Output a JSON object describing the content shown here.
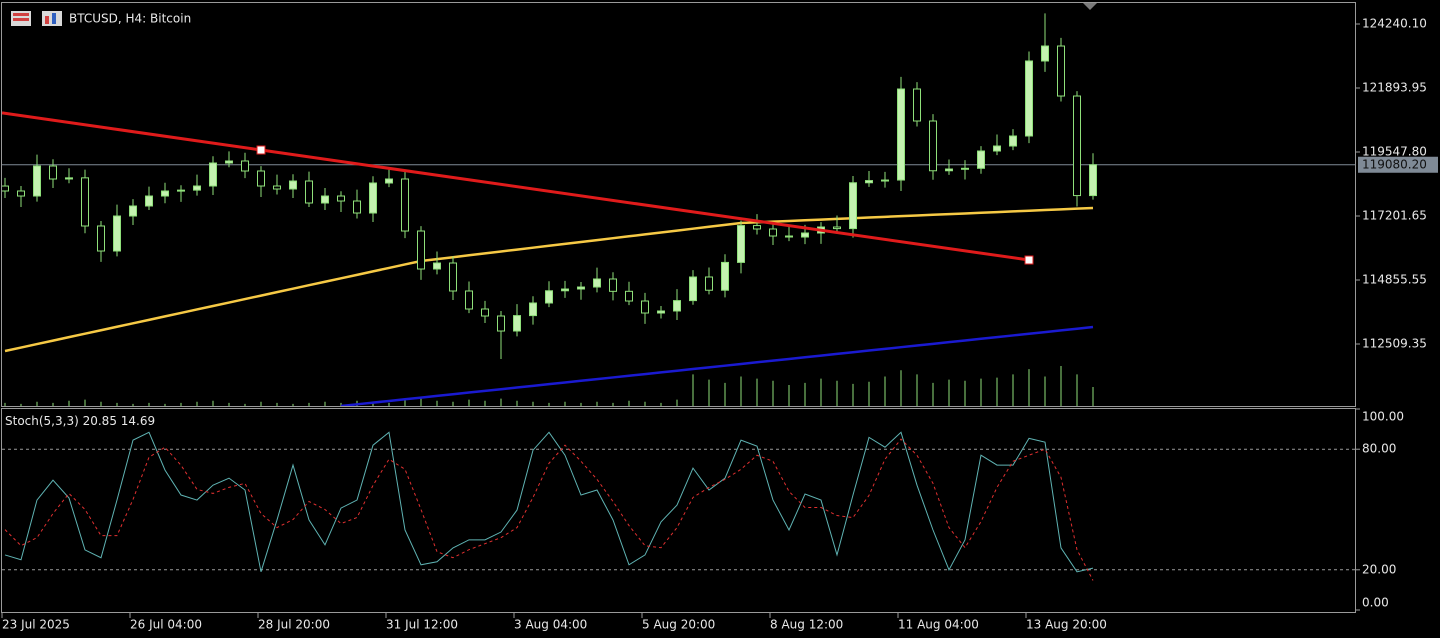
{
  "header": {
    "symbol": "BTCUSD, H4:  Bitcoin"
  },
  "chart_data": [
    {
      "type": "candlestick",
      "up_color": "#c4f2b0",
      "down_color": "#000000",
      "wick_color": "#8fe07a",
      "open": [
        118300,
        118118,
        117934,
        119034,
        118558,
        118600,
        116835,
        115918,
        117201,
        117568,
        117934,
        118118,
        118150,
        118301,
        119144,
        119218,
        118851,
        118301,
        118191,
        118484,
        117678,
        117934,
        117751,
        117311,
        118411,
        118558,
        116651,
        115258,
        115478,
        114452,
        113792,
        113535,
        112985,
        113550,
        114012,
        114460,
        114525,
        114598,
        114892,
        114440,
        114085,
        113645,
        113719,
        114100,
        114965,
        114480,
        115500,
        116850,
        116725,
        116468,
        116431,
        116578,
        116798,
        116740,
        118420,
        118500,
        118520,
        121857,
        120684,
        118860,
        118924,
        118950,
        119584,
        119767,
        120134,
        122884,
        123433,
        121600,
        117950
      ],
      "high": [
        118600,
        118300,
        119450,
        119280,
        118950,
        118900,
        117020,
        117620,
        117820,
        118280,
        118420,
        118330,
        118720,
        119390,
        119570,
        119520,
        119030,
        118720,
        118730,
        118830,
        118230,
        118110,
        118170,
        118660,
        118900,
        118860,
        116830,
        115900,
        115730,
        114800,
        114090,
        113720,
        113970,
        114260,
        114810,
        114825,
        114780,
        115310,
        115140,
        114790,
        114385,
        113900,
        114520,
        115215,
        115315,
        115800,
        117030,
        117270,
        116975,
        116818,
        116878,
        116978,
        117218,
        118670,
        118850,
        118820,
        122300,
        122107,
        120934,
        119274,
        119250,
        119764,
        120187,
        120384,
        123234,
        124630,
        123733,
        121780,
        119500
      ],
      "low": [
        117860,
        117530,
        117730,
        118230,
        118400,
        116570,
        115520,
        115720,
        116870,
        117420,
        117670,
        117720,
        117950,
        117970,
        118990,
        118590,
        117900,
        117990,
        117860,
        117530,
        117420,
        117350,
        117110,
        116980,
        118260,
        116390,
        114860,
        115060,
        114120,
        113640,
        113280,
        111960,
        112790,
        113220,
        113860,
        114200,
        114130,
        114400,
        114110,
        113935,
        113245,
        113445,
        113390,
        113950,
        114330,
        114220,
        115100,
        116525,
        116138,
        116281,
        116171,
        116178,
        116540,
        116410,
        118270,
        118240,
        118120,
        120484,
        118530,
        118710,
        118540,
        118750,
        119434,
        119617,
        119874,
        122484,
        121400,
        117550,
        117800
      ],
      "close": [
        118118,
        117934,
        119034,
        118558,
        118600,
        116835,
        115918,
        117201,
        117568,
        117934,
        118118,
        118150,
        118301,
        119144,
        119218,
        118851,
        118301,
        118191,
        118484,
        117678,
        117934,
        117751,
        117311,
        118411,
        118558,
        116651,
        115258,
        115478,
        114452,
        113792,
        113535,
        112985,
        113550,
        114012,
        114460,
        114525,
        114598,
        114892,
        114440,
        114085,
        113645,
        113719,
        114100,
        114965,
        114480,
        115500,
        116850,
        116725,
        116468,
        116431,
        116578,
        116798,
        116740,
        118420,
        118500,
        118520,
        121857,
        120684,
        118860,
        118924,
        118950,
        119584,
        119767,
        120134,
        122884,
        123433,
        121600,
        117950,
        119080.2
      ],
      "volume": [
        3,
        2,
        4,
        3,
        5,
        6,
        4,
        3,
        2,
        3,
        2,
        3,
        4,
        5,
        3,
        2,
        4,
        3,
        2,
        3,
        4,
        3,
        5,
        4,
        3,
        6,
        8,
        5,
        4,
        6,
        5,
        7,
        5,
        4,
        3,
        4,
        3,
        4,
        3,
        5,
        4,
        3,
        6,
        30,
        25,
        22,
        28,
        26,
        24,
        20,
        22,
        26,
        24,
        21,
        23,
        28,
        34,
        30,
        22,
        25,
        24,
        26,
        27,
        30,
        35,
        28,
        38,
        30,
        18
      ],
      "volume_color": "#8fe07a",
      "series": [
        {
          "color": "#f6c945",
          "values": [
            112252,
            112379,
            112506,
            112633,
            112760,
            112887,
            113014,
            113141,
            113268,
            113394,
            113521,
            113648,
            113775,
            113902,
            114029,
            114156,
            114283,
            114410,
            114537,
            114664,
            114790,
            114917,
            115044,
            115171,
            115298,
            115425,
            115552,
            115622,
            115691,
            115761,
            115831,
            115900,
            115970,
            116040,
            116109,
            116179,
            116249,
            116318,
            116388,
            116458,
            116527,
            116597,
            116667,
            116736,
            116806,
            116876,
            116945,
            116970,
            116995,
            117020,
            117045,
            117070,
            117095,
            117120,
            117145,
            117170,
            117195,
            117220,
            117245,
            117270,
            117295,
            117320,
            117345,
            117370,
            117395,
            117420,
            117445,
            117470,
            117495
          ]
        },
        {
          "color": "#1a1ad0",
          "values": [
            null,
            null,
            null,
            null,
            null,
            null,
            null,
            null,
            null,
            null,
            null,
            null,
            null,
            null,
            null,
            null,
            null,
            null,
            null,
            null,
            null,
            110236,
            110298,
            110359,
            110421,
            110482,
            110544,
            110606,
            110667,
            110729,
            110790,
            110852,
            110914,
            110975,
            111037,
            111098,
            111160,
            111222,
            111283,
            111345,
            111406,
            111468,
            111530,
            111591,
            111653,
            111714,
            111776,
            111838,
            111899,
            111961,
            112022,
            112084,
            112146,
            112207,
            112269,
            112330,
            112392,
            112454,
            112515,
            112577,
            112638,
            112700,
            112762,
            112823,
            112885,
            112946,
            113008,
            113070,
            113131
          ]
        }
      ],
      "trendline": {
        "x": [
          16,
          64
        ],
        "values": [
          119621,
          115588
        ],
        "color": "#e01b1b"
      },
      "current_price": {
        "value": 119080.2,
        "label": "119080.20"
      },
      "ylim": [
        110236,
        125010
      ],
      "yticks": [
        {
          "value": 124240.1,
          "label": "124240.10"
        },
        {
          "value": 121893.95,
          "label": "121893.95"
        },
        {
          "value": 119547.8,
          "label": "119547.80"
        },
        {
          "value": 117201.65,
          "label": "117201.65"
        },
        {
          "value": 114855.55,
          "label": "114855.55"
        },
        {
          "value": 112509.35,
          "label": "112509.35"
        }
      ],
      "xticks": [
        {
          "value": 0,
          "label": "23 Jul 2025"
        },
        {
          "value": 8,
          "label": "26 Jul 04:00"
        },
        {
          "value": 16,
          "label": "28 Jul 20:00"
        },
        {
          "value": 24,
          "label": "31 Jul 12:00"
        },
        {
          "value": 32,
          "label": "3 Aug 04:00"
        },
        {
          "value": 40,
          "label": "5 Aug 20:00"
        },
        {
          "value": 48,
          "label": "8 Aug 12:00"
        },
        {
          "value": 56,
          "label": "11 Aug 04:00"
        },
        {
          "value": 64,
          "label": "13 Aug 20:00"
        }
      ]
    },
    {
      "type": "line",
      "title": "Stoch(5,3,3)",
      "series": [
        {
          "color": "#5fb3b3",
          "dash": false,
          "values": [
            27.4,
            25,
            54.7,
            64.6,
            55.7,
            29.9,
            26,
            54.7,
            84.5,
            88.4,
            69.6,
            57.2,
            54.7,
            62.1,
            65.6,
            59.7,
            19,
            44.8,
            72.1,
            44.8,
            32.4,
            50.7,
            54.7,
            82,
            88.4,
            39.8,
            22.5,
            24,
            30.9,
            34.9,
            34.9,
            38.8,
            49.7,
            79.5,
            88.4,
            77,
            57.2,
            59.7,
            44.8,
            22.5,
            27.4,
            43.8,
            52.2,
            70.6,
            59.7,
            65.6,
            84.5,
            81.5,
            54.7,
            39.8,
            57.7,
            54.7,
            27.4,
            57.2,
            85.9,
            81,
            88.4,
            62.1,
            39.8,
            20,
            34.9,
            77,
            72.1,
            72.1,
            85.4,
            83.5,
            30.9,
            19,
            20.85
          ]
        },
        {
          "color": "#e03030",
          "dash": true,
          "values": [
            40,
            32,
            36,
            48,
            58,
            50,
            37,
            37,
            55,
            76,
            81,
            72,
            60,
            58,
            61,
            63,
            48,
            41,
            45,
            54,
            50,
            43,
            46,
            62,
            75,
            70,
            50,
            29,
            26,
            30,
            33,
            36,
            41,
            56,
            73,
            82,
            74,
            65,
            54,
            42,
            32,
            31,
            41,
            56,
            61,
            65,
            70,
            77,
            74,
            59,
            51,
            51,
            47,
            46,
            57,
            75,
            85,
            77,
            63,
            41,
            31,
            44,
            61,
            74,
            77,
            80,
            66,
            30,
            14.69
          ]
        }
      ],
      "ylim": [
        0,
        100
      ],
      "yticks": [
        {
          "value": 100,
          "label": "100.00"
        },
        {
          "value": 80,
          "label": "80.00"
        },
        {
          "value": 20,
          "label": "20.00"
        },
        {
          "value": 0,
          "label": "0.00"
        }
      ]
    }
  ]
}
